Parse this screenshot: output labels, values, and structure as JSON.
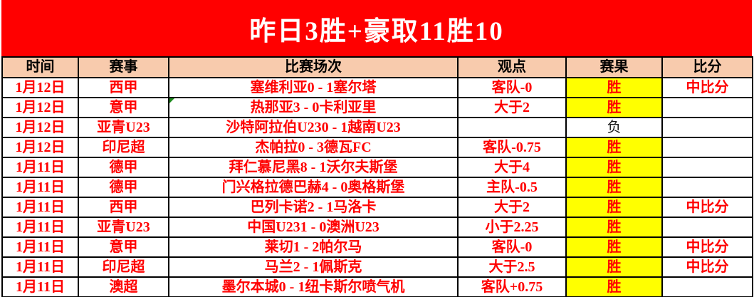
{
  "banner": {
    "title": "昨日3胜+豪取11胜10"
  },
  "table": {
    "columns": [
      "时间",
      "赛事",
      "比赛场次",
      "观点",
      "赛果",
      "比分"
    ],
    "rows": [
      {
        "date": "1月12日",
        "league": "西甲",
        "match": "塞维利亚0 - 1塞尔塔",
        "view": "客队-0",
        "result": "胜",
        "outcome": "win",
        "score": "中比分",
        "note_marker": false
      },
      {
        "date": "1月12日",
        "league": "意甲",
        "match": "热那亚3 - 0卡利亚里",
        "view": "大于2",
        "result": "胜",
        "outcome": "win",
        "score": "",
        "note_marker": true
      },
      {
        "date": "1月12日",
        "league": "亚青U23",
        "match": "沙特阿拉伯U230 - 1越南U23",
        "view": "",
        "result": "负",
        "outcome": "loss",
        "score": "",
        "note_marker": false
      },
      {
        "date": "1月12日",
        "league": "印尼超",
        "match": "杰帕拉0 - 3德瓦FC",
        "view": "客队-0.75",
        "result": "胜",
        "outcome": "win",
        "score": "",
        "note_marker": false
      },
      {
        "date": "1月11日",
        "league": "德甲",
        "match": "拜仁慕尼黑8 - 1沃尔夫斯堡",
        "view": "大于4",
        "result": "胜",
        "outcome": "win",
        "score": "",
        "note_marker": false
      },
      {
        "date": "1月11日",
        "league": "德甲",
        "match": "门兴格拉德巴赫4 - 0奥格斯堡",
        "view": "主队-0.5",
        "result": "胜",
        "outcome": "win",
        "score": "",
        "note_marker": false
      },
      {
        "date": "1月11日",
        "league": "西甲",
        "match": "巴列卡诺2 - 1马洛卡",
        "view": "大于2",
        "result": "胜",
        "outcome": "win",
        "score": "中比分",
        "note_marker": false
      },
      {
        "date": "1月11日",
        "league": "亚青U23",
        "match": "中国U231 - 0澳洲U23",
        "view": "小于2.25",
        "result": "胜",
        "outcome": "win",
        "score": "",
        "note_marker": false
      },
      {
        "date": "1月11日",
        "league": "意甲",
        "match": "莱切1 - 2帕尔马",
        "view": "客队-0",
        "result": "胜",
        "outcome": "win",
        "score": "中比分",
        "note_marker": false
      },
      {
        "date": "1月11日",
        "league": "印尼超",
        "match": "马兰2 - 1佩斯克",
        "view": "大于2.5",
        "result": "胜",
        "outcome": "win",
        "score": "中比分",
        "note_marker": false
      },
      {
        "date": "1月11日",
        "league": "澳超",
        "match": "墨尔本城0 - 1纽卡斯尔喷气机",
        "view": "客队+0.75",
        "result": "胜",
        "outcome": "win",
        "score": "",
        "note_marker": false
      }
    ]
  },
  "colors": {
    "banner_bg": "#FF0000",
    "banner_text": "#FFFFFF",
    "header_bg": "#F8CBAD",
    "header_text": "#000000",
    "row_text": "#FF0000",
    "win_bg": "#FFFF00",
    "loss_text": "#1A1A1A",
    "note_marker": "#1E8C1E"
  }
}
